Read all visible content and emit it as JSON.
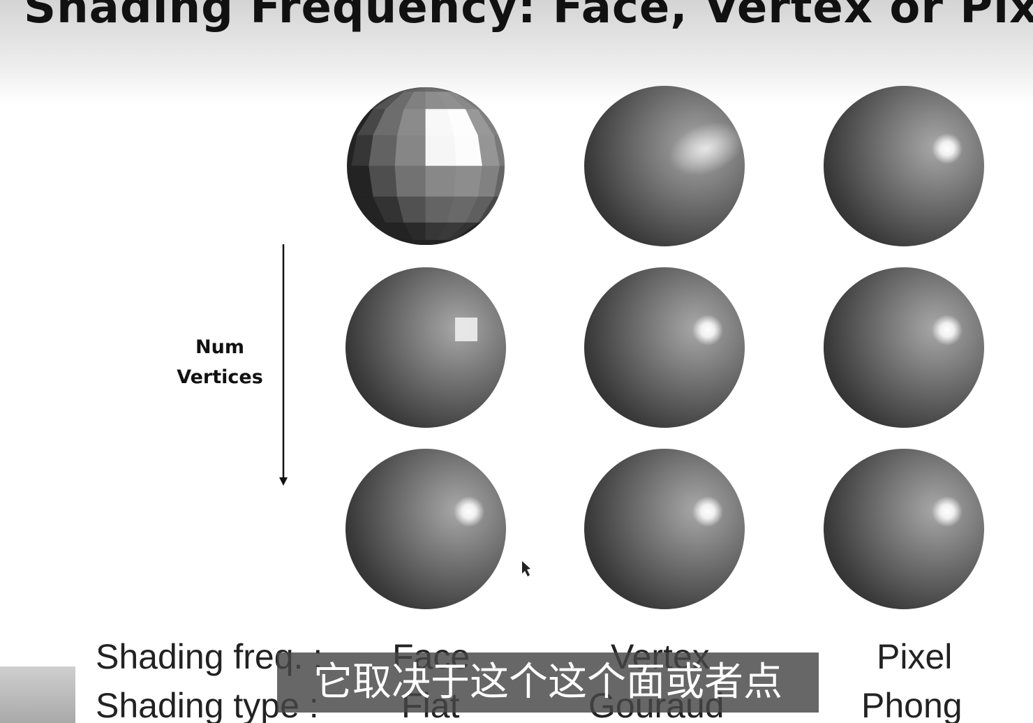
{
  "title": "Shading Frequency: Face, Vertex or Pixel",
  "axis_label": [
    "Num",
    "Vertices"
  ],
  "rows": [
    {
      "label": "Shading freq. :",
      "cells": [
        "Face",
        "Vertex",
        "Pixel"
      ]
    },
    {
      "label": "Shading type :",
      "cells": [
        "Flat",
        "Gouraud",
        "Phong"
      ]
    }
  ],
  "subtitle": "它取决于这个这个面或者点"
}
